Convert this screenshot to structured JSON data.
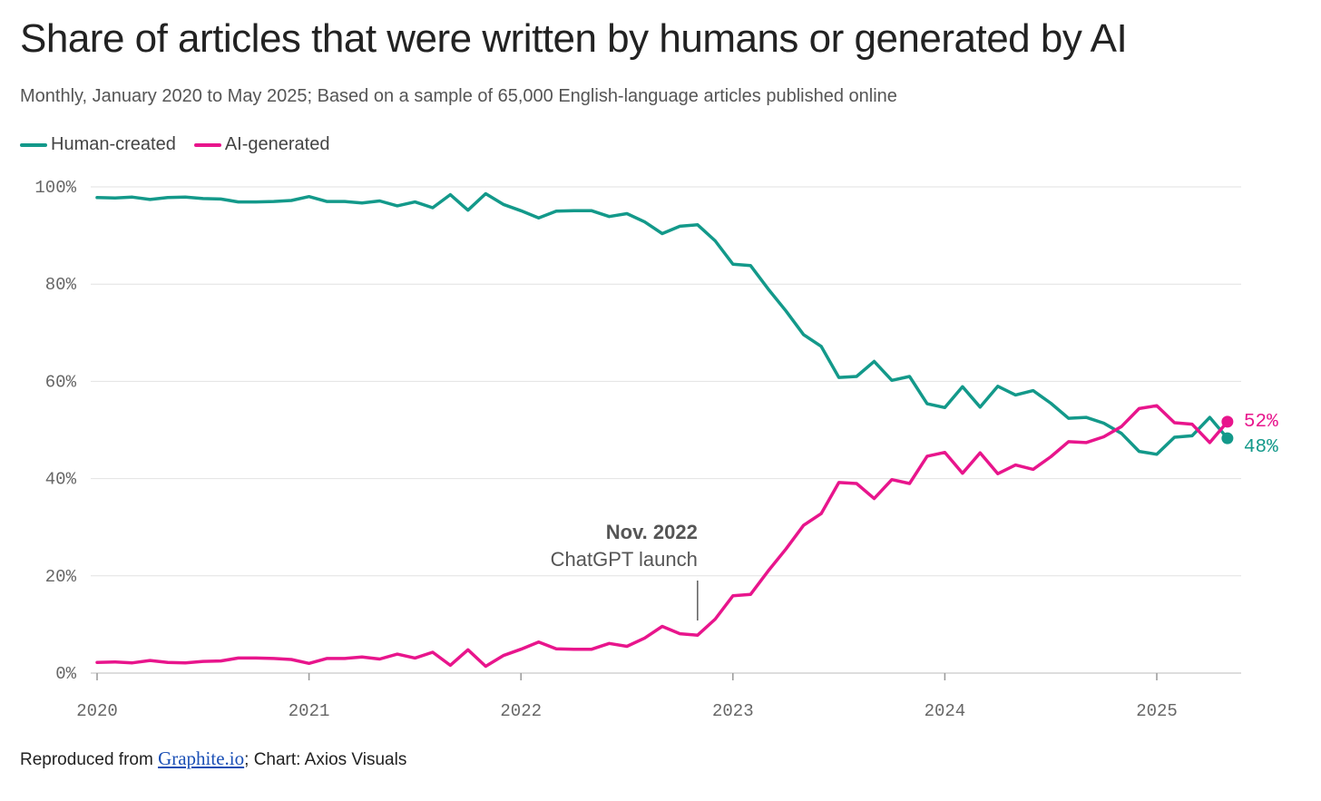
{
  "header": {
    "title": "Share of articles that were written by humans or generated by AI",
    "subtitle": "Monthly, January 2020 to May 2025; Based on a sample of 65,000 English-language articles published online"
  },
  "footer": {
    "prefix": "Reproduced from ",
    "link_text": "Graphite.io",
    "suffix": "; Chart: Axios Visuals"
  },
  "chart_data": {
    "type": "line",
    "title": "Share of articles that were written by humans or generated by AI",
    "subtitle": "Monthly, January 2020 to May 2025; Based on a sample of 65,000 English-language articles published online",
    "xlabel": "",
    "ylabel": "",
    "x_start": "2020-01",
    "x_end": "2025-05",
    "x_ticks": [
      "2020",
      "2021",
      "2022",
      "2023",
      "2024",
      "2025"
    ],
    "y_ticks": [
      "0%",
      "20%",
      "40%",
      "60%",
      "80%",
      "100%"
    ],
    "ylim": [
      0,
      100
    ],
    "grid": true,
    "legend_position": "top-left",
    "series": [
      {
        "name": "Human-created",
        "color": "#13998a",
        "end_label": "48%",
        "values": [
          97.8,
          97.7,
          97.9,
          97.4,
          97.8,
          97.9,
          97.6,
          97.5,
          96.9,
          96.9,
          97.0,
          97.2,
          98.0,
          97.0,
          97.0,
          96.7,
          97.1,
          96.1,
          96.9,
          95.7,
          98.4,
          95.2,
          98.6,
          96.4,
          95.1,
          93.6,
          95.0,
          95.1,
          95.1,
          93.9,
          94.5,
          92.8,
          90.4,
          91.9,
          92.2,
          88.9,
          84.1,
          83.8,
          79.0,
          74.5,
          69.6,
          67.2,
          60.8,
          61.0,
          64.1,
          60.2,
          61.0,
          55.4,
          54.6,
          58.9,
          54.7,
          59.0,
          57.2,
          58.1,
          55.5,
          52.4,
          52.6,
          51.4,
          49.3,
          45.6,
          45.0,
          48.5,
          48.8,
          52.6,
          48.3
        ]
      },
      {
        "name": "AI-generated",
        "color": "#e8158c",
        "end_label": "52%",
        "values": [
          2.2,
          2.3,
          2.1,
          2.6,
          2.2,
          2.1,
          2.4,
          2.5,
          3.1,
          3.1,
          3.0,
          2.8,
          2.0,
          3.0,
          3.0,
          3.3,
          2.9,
          3.9,
          3.1,
          4.3,
          1.6,
          4.8,
          1.4,
          3.6,
          4.9,
          6.4,
          5.0,
          4.9,
          4.9,
          6.1,
          5.5,
          7.2,
          9.6,
          8.1,
          7.8,
          11.1,
          15.9,
          16.2,
          21.0,
          25.5,
          30.4,
          32.8,
          39.2,
          39.0,
          35.9,
          39.8,
          39.0,
          44.6,
          45.4,
          41.1,
          45.3,
          41.0,
          42.8,
          41.9,
          44.5,
          47.6,
          47.4,
          48.6,
          50.7,
          54.4,
          55.0,
          51.5,
          51.2,
          47.4,
          51.7
        ]
      }
    ],
    "annotations": [
      {
        "x": "2022-11",
        "title": "Nov. 2022",
        "text": "ChatGPT launch"
      }
    ]
  }
}
